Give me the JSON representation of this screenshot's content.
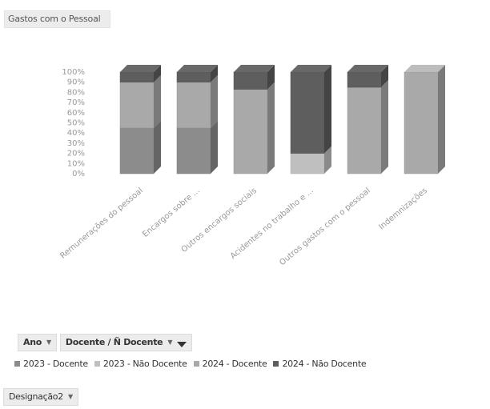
{
  "title": "Gastos com o Pessoal",
  "filters": {
    "ano_label": "Ano",
    "docente_label": "Docente / Ñ Docente",
    "designacao_label": "Designação2"
  },
  "chart_data": {
    "type": "bar",
    "stacked": "percent",
    "three_d": true,
    "categories": [
      "Remunerações do pessoal",
      "Encargos sobre ...",
      "Outros encargos sociais",
      "Acidentes no trabalho e ...",
      "Outros gastos com o pessoal",
      "Indemnizações"
    ],
    "series": [
      {
        "name": "2023 - Docente",
        "color": "#8c8c8c",
        "values": [
          45,
          45,
          0,
          0,
          0,
          0
        ]
      },
      {
        "name": "2023 - Não Docente",
        "color": "#bfbfbf",
        "values": [
          0,
          0,
          0,
          20,
          0,
          0
        ]
      },
      {
        "name": "2024 - Docente",
        "color": "#a9a9a9",
        "values": [
          45,
          45,
          83,
          0,
          85,
          100
        ]
      },
      {
        "name": "2024 - Não Docente",
        "color": "#5e5e5e",
        "values": [
          10,
          10,
          17,
          80,
          15,
          0
        ]
      }
    ],
    "y_ticks": [
      "0%",
      "10%",
      "20%",
      "30%",
      "40%",
      "50%",
      "60%",
      "70%",
      "80%",
      "90%",
      "100%"
    ],
    "ylim": [
      0,
      100
    ],
    "legend_position": "bottom",
    "grid": false
  }
}
